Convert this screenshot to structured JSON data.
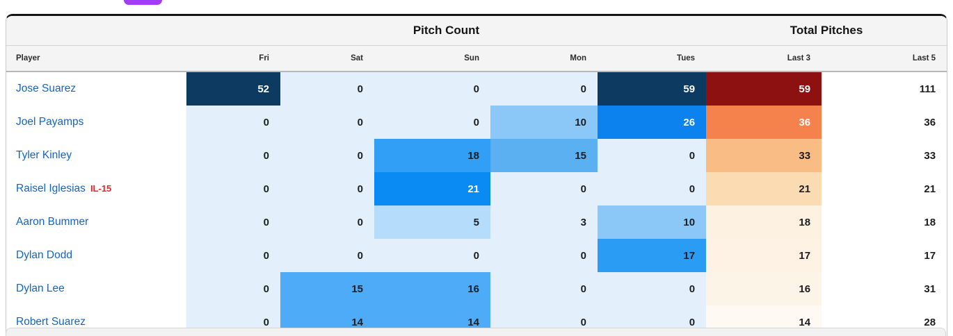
{
  "top_bar": {
    "pill_color": "#a43bf5"
  },
  "table": {
    "group_headers": [
      {
        "label": "Pitch Count",
        "span": 5
      },
      {
        "label": "Total Pitches",
        "span": 2
      }
    ],
    "columns": [
      "Player",
      "Fri",
      "Sat",
      "Sun",
      "Mon",
      "Tues",
      "Last 3",
      "Last 5"
    ],
    "rows": [
      {
        "player": "Jose Suarez",
        "cells": [
          {
            "v": "52",
            "bg": "#0c3a60",
            "fg": "#ffffff"
          },
          {
            "v": "0",
            "bg": "#e3f0fc"
          },
          {
            "v": "0",
            "bg": "#e3f0fc"
          },
          {
            "v": "0",
            "bg": "#e3f0fc"
          },
          {
            "v": "59",
            "bg": "#0c3a60",
            "fg": "#ffffff"
          },
          {
            "v": "59",
            "bg": "#8e1111",
            "fg": "#ffffff"
          },
          {
            "v": "111"
          }
        ]
      },
      {
        "player": "Joel Payamps",
        "cells": [
          {
            "v": "0",
            "bg": "#e3f0fc"
          },
          {
            "v": "0",
            "bg": "#e3f0fc"
          },
          {
            "v": "0",
            "bg": "#e3f0fc"
          },
          {
            "v": "10",
            "bg": "#8bc8f8"
          },
          {
            "v": "26",
            "bg": "#0b82ee",
            "fg": "#ffffff"
          },
          {
            "v": "36",
            "bg": "#f5824d",
            "fg": "#ffffff"
          },
          {
            "v": "36"
          }
        ]
      },
      {
        "player": "Tyler Kinley",
        "cells": [
          {
            "v": "0",
            "bg": "#e3f0fc"
          },
          {
            "v": "0",
            "bg": "#e3f0fc"
          },
          {
            "v": "18",
            "bg": "#319ff5"
          },
          {
            "v": "15",
            "bg": "#5bb0f2"
          },
          {
            "v": "0",
            "bg": "#e3f0fc"
          },
          {
            "v": "33",
            "bg": "#f8bc84"
          },
          {
            "v": "33"
          }
        ]
      },
      {
        "player": "Raisel Iglesias",
        "tag": "IL-15",
        "cells": [
          {
            "v": "0",
            "bg": "#e3f0fc"
          },
          {
            "v": "0",
            "bg": "#e3f0fc"
          },
          {
            "v": "21",
            "bg": "#0a8af3",
            "fg": "#ffffff"
          },
          {
            "v": "0",
            "bg": "#e3f0fc"
          },
          {
            "v": "0",
            "bg": "#e3f0fc"
          },
          {
            "v": "21",
            "bg": "#fbdcb2"
          },
          {
            "v": "21"
          }
        ]
      },
      {
        "player": "Aaron Bummer",
        "cells": [
          {
            "v": "0",
            "bg": "#e3f0fc"
          },
          {
            "v": "0",
            "bg": "#e3f0fc"
          },
          {
            "v": "5",
            "bg": "#b5dcfa"
          },
          {
            "v": "3",
            "bg": "#e3f0fc"
          },
          {
            "v": "10",
            "bg": "#8bc8f8"
          },
          {
            "v": "18",
            "bg": "#fdf1e1"
          },
          {
            "v": "18"
          }
        ]
      },
      {
        "player": "Dylan Dodd",
        "cells": [
          {
            "v": "0",
            "bg": "#e3f0fc"
          },
          {
            "v": "0",
            "bg": "#e3f0fc"
          },
          {
            "v": "0",
            "bg": "#e3f0fc"
          },
          {
            "v": "0",
            "bg": "#e3f0fc"
          },
          {
            "v": "17",
            "bg": "#2b9cf4"
          },
          {
            "v": "17",
            "bg": "#fdf2e3"
          },
          {
            "v": "17"
          }
        ]
      },
      {
        "player": "Dylan Lee",
        "cells": [
          {
            "v": "0",
            "bg": "#e3f0fc"
          },
          {
            "v": "15",
            "bg": "#4dabf7"
          },
          {
            "v": "16",
            "bg": "#4dabf7"
          },
          {
            "v": "0",
            "bg": "#e3f0fc"
          },
          {
            "v": "0",
            "bg": "#e3f0fc"
          },
          {
            "v": "16",
            "bg": "#fdf4e8"
          },
          {
            "v": "31"
          }
        ]
      },
      {
        "player": "Robert Suarez",
        "cells": [
          {
            "v": "0",
            "bg": "#e3f0fc"
          },
          {
            "v": "14",
            "bg": "#4dabf7"
          },
          {
            "v": "14",
            "bg": "#4dabf7"
          },
          {
            "v": "0",
            "bg": "#e3f0fc"
          },
          {
            "v": "0",
            "bg": "#e3f0fc"
          },
          {
            "v": "14",
            "bg": "#fefaf3"
          },
          {
            "v": "28"
          }
        ]
      }
    ]
  },
  "colors": {
    "heat_zero": "#e3f0fc",
    "heat_max_blue": "#0c3a60",
    "heat_max_red": "#8e1111",
    "player_link": "#1464c4",
    "injury_tag": "#e3242b",
    "header_bg": "#f5f4f5"
  }
}
